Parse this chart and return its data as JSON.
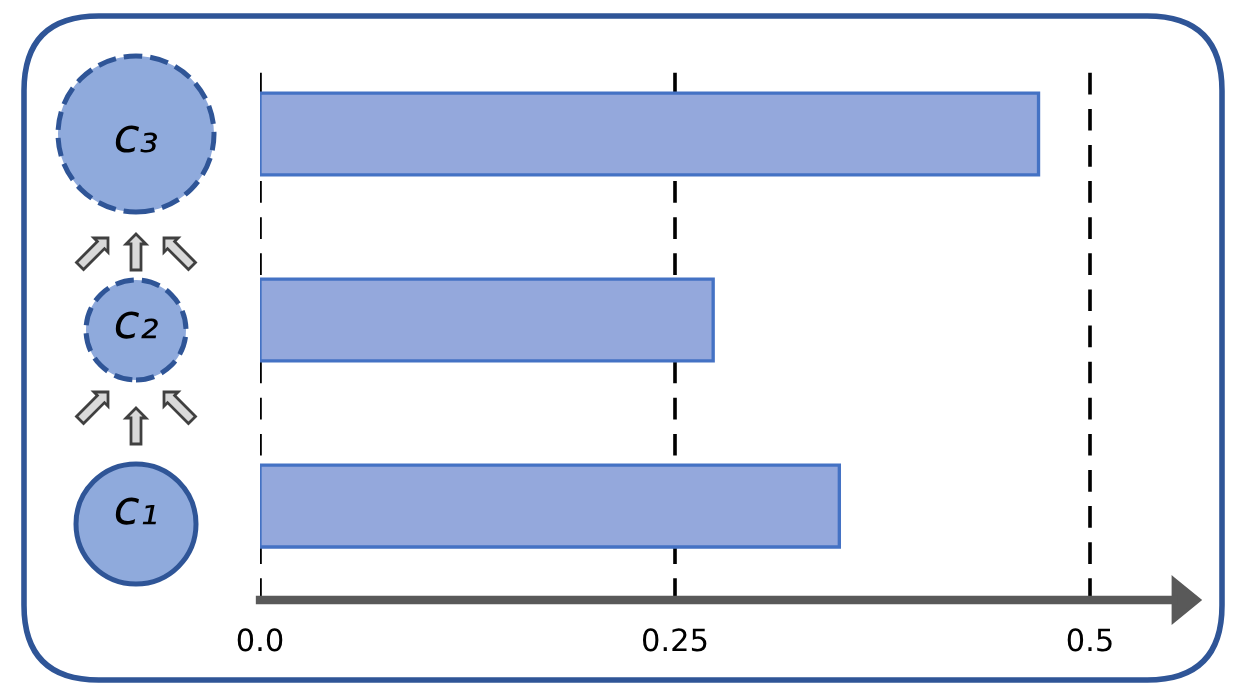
{
  "chart_data": {
    "type": "bar",
    "orientation": "horizontal",
    "categories": [
      "c₃",
      "c₂",
      "c₁"
    ],
    "values": [
      0.469,
      0.273,
      0.349
    ],
    "color": "#94a8dc",
    "xlim": [
      0,
      0.55
    ],
    "xticks": [
      {
        "value": 0,
        "label": "0.0"
      },
      0.25,
      0.5
    ],
    "grid": "x"
  }
}
